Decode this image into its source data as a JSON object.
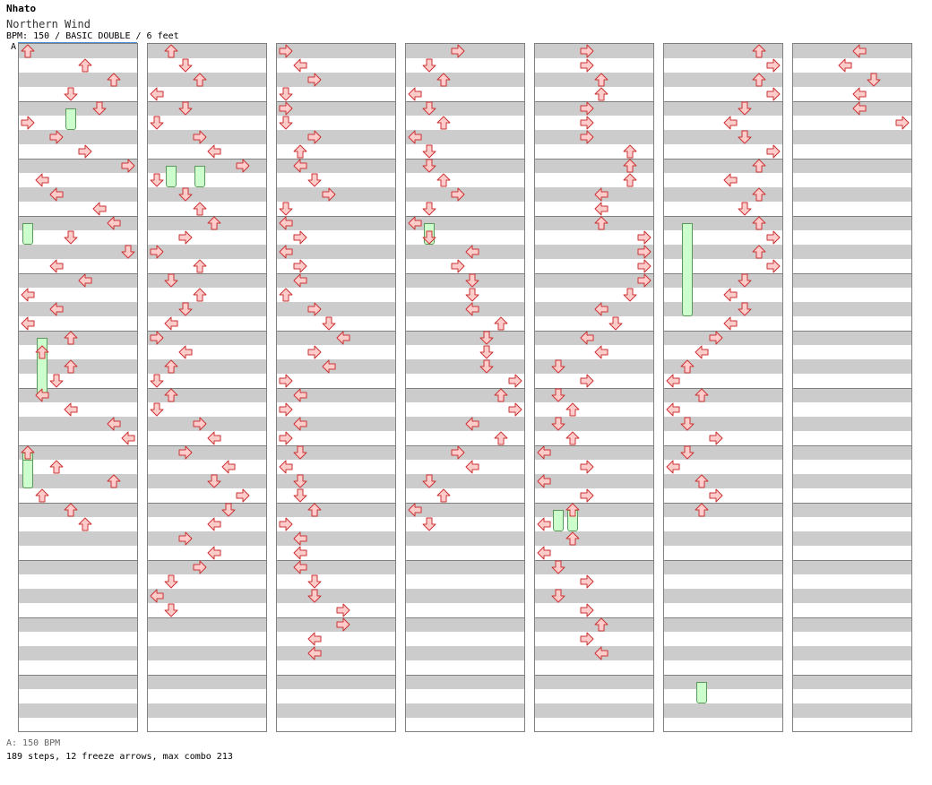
{
  "header": {
    "artist": "Nhato",
    "title": "Northern Wind",
    "info": "BPM: 150 / BASIC DOUBLE / 6 feet",
    "bpm_marker": "A"
  },
  "footer": {
    "bpm_note": "A: 150 BPM",
    "stats": "189 steps, 12 freeze arrows, max combo 213"
  },
  "colors": {
    "arrow_fill": "#ffcccc",
    "arrow_stroke": "#cc3333",
    "freeze_fill": "#ccffcc",
    "freeze_stroke": "#5a9a5a",
    "stripe": "#cccccc",
    "border": "#808080"
  },
  "chart": {
    "lanes": [
      "L",
      "D",
      "U",
      "R",
      "L",
      "D",
      "U",
      "R"
    ],
    "measures_per_column": 12,
    "rows_per_measure": 8,
    "columns": [
      {
        "notes": [
          [
            1,
            0,
            "U"
          ],
          [
            1,
            4,
            "U"
          ],
          [
            1,
            6,
            "U"
          ],
          [
            1,
            3,
            "D"
          ],
          [
            1,
            5,
            "D"
          ],
          [
            1,
            0,
            "R"
          ],
          [
            1,
            2,
            "R"
          ],
          [
            1,
            4,
            "R"
          ],
          [
            1,
            7,
            "R"
          ],
          [
            1,
            1,
            "L"
          ],
          [
            1,
            2,
            "L"
          ],
          [
            1,
            5,
            "L"
          ],
          [
            1,
            6,
            "L"
          ],
          [
            1,
            3,
            "D"
          ],
          [
            1,
            7,
            "D"
          ],
          [
            1,
            2,
            "L"
          ],
          [
            1,
            4,
            "L"
          ],
          [
            1,
            0,
            "L"
          ],
          [
            1,
            2,
            "L"
          ],
          [
            1,
            0,
            "L"
          ],
          [
            1,
            3,
            "U"
          ],
          [
            1,
            1,
            "U"
          ],
          [
            1,
            3,
            "U"
          ],
          [
            1,
            2,
            "D"
          ],
          [
            1,
            1,
            "L"
          ],
          [
            1,
            3,
            "L"
          ],
          [
            1,
            6,
            "L"
          ],
          [
            1,
            7,
            "L"
          ],
          [
            1,
            0,
            "U"
          ],
          [
            1,
            2,
            "U"
          ],
          [
            1,
            6,
            "U"
          ],
          [
            1,
            1,
            "U"
          ],
          [
            1,
            3,
            "U"
          ],
          [
            1,
            4,
            "U"
          ]
        ],
        "freezes": [
          [
            1,
            "R",
            8,
            11
          ],
          [
            1,
            "L",
            24,
            27
          ],
          [
            1,
            "D",
            40,
            48
          ],
          [
            1,
            "L",
            56,
            61
          ],
          [
            1,
            "L",
            57,
            61
          ]
        ]
      },
      {
        "notes": [
          [
            2,
            1,
            "U"
          ],
          [
            2,
            2,
            "D"
          ],
          [
            2,
            3,
            "U"
          ],
          [
            2,
            0,
            "L"
          ],
          [
            2,
            2,
            "D"
          ],
          [
            2,
            0,
            "D"
          ],
          [
            2,
            3,
            "R"
          ],
          [
            2,
            4,
            "L"
          ],
          [
            2,
            6,
            "R"
          ],
          [
            2,
            0,
            "D"
          ],
          [
            2,
            2,
            "D"
          ],
          [
            2,
            3,
            "U"
          ],
          [
            2,
            4,
            "U"
          ],
          [
            2,
            2,
            "R"
          ],
          [
            2,
            0,
            "R"
          ],
          [
            2,
            3,
            "U"
          ],
          [
            2,
            1,
            "D"
          ],
          [
            2,
            3,
            "U"
          ],
          [
            2,
            2,
            "D"
          ],
          [
            2,
            1,
            "L"
          ],
          [
            2,
            0,
            "R"
          ],
          [
            2,
            2,
            "L"
          ],
          [
            2,
            1,
            "U"
          ],
          [
            2,
            0,
            "D"
          ],
          [
            2,
            1,
            "U"
          ],
          [
            2,
            0,
            "D"
          ],
          [
            2,
            3,
            "R"
          ],
          [
            2,
            4,
            "L"
          ],
          [
            2,
            2,
            "R"
          ],
          [
            2,
            5,
            "L"
          ],
          [
            2,
            4,
            "D"
          ],
          [
            2,
            6,
            "R"
          ],
          [
            2,
            5,
            "D"
          ],
          [
            2,
            4,
            "L"
          ],
          [
            2,
            2,
            "R"
          ],
          [
            2,
            4,
            "L"
          ],
          [
            2,
            3,
            "R"
          ],
          [
            2,
            1,
            "D"
          ],
          [
            2,
            0,
            "L"
          ],
          [
            2,
            1,
            "D"
          ]
        ],
        "freezes": [
          [
            2,
            "D",
            16,
            19
          ],
          [
            2,
            "R",
            16,
            19
          ]
        ]
      },
      {
        "notes": [
          [
            3,
            0,
            "R"
          ],
          [
            3,
            1,
            "L"
          ],
          [
            3,
            2,
            "R"
          ],
          [
            3,
            0,
            "D"
          ],
          [
            3,
            0,
            "R"
          ],
          [
            3,
            0,
            "D"
          ],
          [
            3,
            2,
            "R"
          ],
          [
            3,
            1,
            "U"
          ],
          [
            3,
            1,
            "L"
          ],
          [
            3,
            2,
            "D"
          ],
          [
            3,
            3,
            "R"
          ],
          [
            3,
            0,
            "D"
          ],
          [
            3,
            0,
            "L"
          ],
          [
            3,
            1,
            "R"
          ],
          [
            3,
            0,
            "L"
          ],
          [
            3,
            1,
            "R"
          ],
          [
            3,
            1,
            "L"
          ],
          [
            3,
            0,
            "U"
          ],
          [
            3,
            2,
            "R"
          ],
          [
            3,
            3,
            "D"
          ],
          [
            3,
            4,
            "L"
          ],
          [
            3,
            2,
            "R"
          ],
          [
            3,
            3,
            "L"
          ],
          [
            3,
            0,
            "R"
          ],
          [
            3,
            1,
            "L"
          ],
          [
            3,
            0,
            "R"
          ],
          [
            3,
            1,
            "L"
          ],
          [
            3,
            0,
            "R"
          ],
          [
            3,
            1,
            "D"
          ],
          [
            3,
            0,
            "L"
          ],
          [
            3,
            1,
            "D"
          ],
          [
            3,
            1,
            "D"
          ],
          [
            3,
            2,
            "U"
          ],
          [
            3,
            0,
            "R"
          ],
          [
            3,
            1,
            "L"
          ],
          [
            3,
            1,
            "L"
          ],
          [
            3,
            1,
            "L"
          ],
          [
            3,
            2,
            "D"
          ],
          [
            3,
            2,
            "D"
          ],
          [
            3,
            4,
            "R"
          ],
          [
            3,
            4,
            "R"
          ],
          [
            3,
            2,
            "L"
          ],
          [
            3,
            2,
            "L"
          ]
        ],
        "freezes": []
      },
      {
        "notes": [
          [
            4,
            3,
            "R"
          ],
          [
            4,
            1,
            "D"
          ],
          [
            4,
            2,
            "U"
          ],
          [
            4,
            0,
            "L"
          ],
          [
            4,
            1,
            "D"
          ],
          [
            4,
            2,
            "U"
          ],
          [
            4,
            0,
            "L"
          ],
          [
            4,
            1,
            "D"
          ],
          [
            4,
            1,
            "D"
          ],
          [
            4,
            2,
            "U"
          ],
          [
            4,
            3,
            "R"
          ],
          [
            4,
            1,
            "D"
          ],
          [
            4,
            0,
            "L"
          ],
          [
            4,
            1,
            "D"
          ],
          [
            4,
            4,
            "L"
          ],
          [
            4,
            3,
            "R"
          ],
          [
            4,
            4,
            "D"
          ],
          [
            4,
            4,
            "D"
          ],
          [
            4,
            4,
            "L"
          ],
          [
            4,
            6,
            "U"
          ],
          [
            4,
            5,
            "D"
          ],
          [
            4,
            5,
            "D"
          ],
          [
            4,
            5,
            "D"
          ],
          [
            4,
            7,
            "R"
          ],
          [
            4,
            6,
            "U"
          ],
          [
            4,
            7,
            "R"
          ],
          [
            4,
            4,
            "L"
          ],
          [
            4,
            6,
            "U"
          ],
          [
            4,
            3,
            "R"
          ],
          [
            4,
            4,
            "L"
          ],
          [
            4,
            1,
            "D"
          ],
          [
            4,
            2,
            "U"
          ],
          [
            4,
            0,
            "L"
          ],
          [
            4,
            1,
            "D"
          ]
        ],
        "freezes": [
          [
            4,
            "D",
            24,
            27
          ]
        ]
      },
      {
        "notes": [
          [
            5,
            3,
            "R"
          ],
          [
            5,
            3,
            "R"
          ],
          [
            5,
            4,
            "U"
          ],
          [
            5,
            4,
            "U"
          ],
          [
            5,
            3,
            "R"
          ],
          [
            5,
            3,
            "R"
          ],
          [
            5,
            3,
            "R"
          ],
          [
            5,
            6,
            "U"
          ],
          [
            5,
            6,
            "U"
          ],
          [
            5,
            6,
            "U"
          ],
          [
            5,
            4,
            "L"
          ],
          [
            5,
            4,
            "L"
          ],
          [
            5,
            4,
            "U"
          ],
          [
            5,
            7,
            "R"
          ],
          [
            5,
            7,
            "R"
          ],
          [
            5,
            7,
            "R"
          ],
          [
            5,
            7,
            "R"
          ],
          [
            5,
            6,
            "D"
          ],
          [
            5,
            4,
            "L"
          ],
          [
            5,
            5,
            "D"
          ],
          [
            5,
            3,
            "L"
          ],
          [
            5,
            4,
            "L"
          ],
          [
            5,
            1,
            "D"
          ],
          [
            5,
            3,
            "R"
          ],
          [
            5,
            1,
            "D"
          ],
          [
            5,
            2,
            "U"
          ],
          [
            5,
            1,
            "D"
          ],
          [
            5,
            2,
            "U"
          ],
          [
            5,
            0,
            "L"
          ],
          [
            5,
            3,
            "R"
          ],
          [
            5,
            0,
            "L"
          ],
          [
            5,
            3,
            "R"
          ],
          [
            5,
            2,
            "U"
          ],
          [
            5,
            0,
            "L"
          ],
          [
            5,
            2,
            "U"
          ],
          [
            5,
            0,
            "L"
          ],
          [
            5,
            1,
            "D"
          ],
          [
            5,
            3,
            "R"
          ],
          [
            5,
            1,
            "D"
          ],
          [
            5,
            3,
            "R"
          ],
          [
            5,
            4,
            "U"
          ],
          [
            5,
            3,
            "R"
          ],
          [
            5,
            4,
            "L"
          ]
        ],
        "freezes": [
          [
            5,
            "D",
            64,
            67
          ],
          [
            5,
            "U",
            64,
            67
          ]
        ]
      },
      {
        "notes": [
          [
            6,
            6,
            "U"
          ],
          [
            6,
            7,
            "R"
          ],
          [
            6,
            6,
            "U"
          ],
          [
            6,
            7,
            "R"
          ],
          [
            6,
            5,
            "D"
          ],
          [
            6,
            4,
            "L"
          ],
          [
            6,
            5,
            "D"
          ],
          [
            6,
            7,
            "R"
          ],
          [
            6,
            6,
            "U"
          ],
          [
            6,
            4,
            "L"
          ],
          [
            6,
            6,
            "U"
          ],
          [
            6,
            5,
            "D"
          ],
          [
            6,
            6,
            "U"
          ],
          [
            6,
            7,
            "R"
          ],
          [
            6,
            6,
            "U"
          ],
          [
            6,
            7,
            "R"
          ],
          [
            6,
            5,
            "D"
          ],
          [
            6,
            4,
            "L"
          ],
          [
            6,
            5,
            "D"
          ],
          [
            6,
            4,
            "L"
          ],
          [
            6,
            3,
            "R"
          ],
          [
            6,
            2,
            "L"
          ],
          [
            6,
            1,
            "U"
          ],
          [
            6,
            0,
            "L"
          ],
          [
            6,
            2,
            "U"
          ],
          [
            6,
            0,
            "L"
          ],
          [
            6,
            1,
            "D"
          ],
          [
            6,
            3,
            "R"
          ],
          [
            6,
            1,
            "D"
          ],
          [
            6,
            0,
            "L"
          ],
          [
            6,
            2,
            "U"
          ],
          [
            6,
            3,
            "R"
          ],
          [
            6,
            2,
            "U"
          ]
        ],
        "freezes": [
          [
            6,
            "D",
            24,
            37
          ],
          [
            6,
            "U",
            88,
            91
          ]
        ]
      },
      {
        "notes": [
          [
            7,
            4,
            "L"
          ],
          [
            7,
            3,
            "L"
          ],
          [
            7,
            5,
            "D"
          ],
          [
            7,
            4,
            "L"
          ],
          [
            7,
            4,
            "L"
          ],
          [
            7,
            7,
            "R"
          ]
        ],
        "freezes": []
      }
    ]
  }
}
